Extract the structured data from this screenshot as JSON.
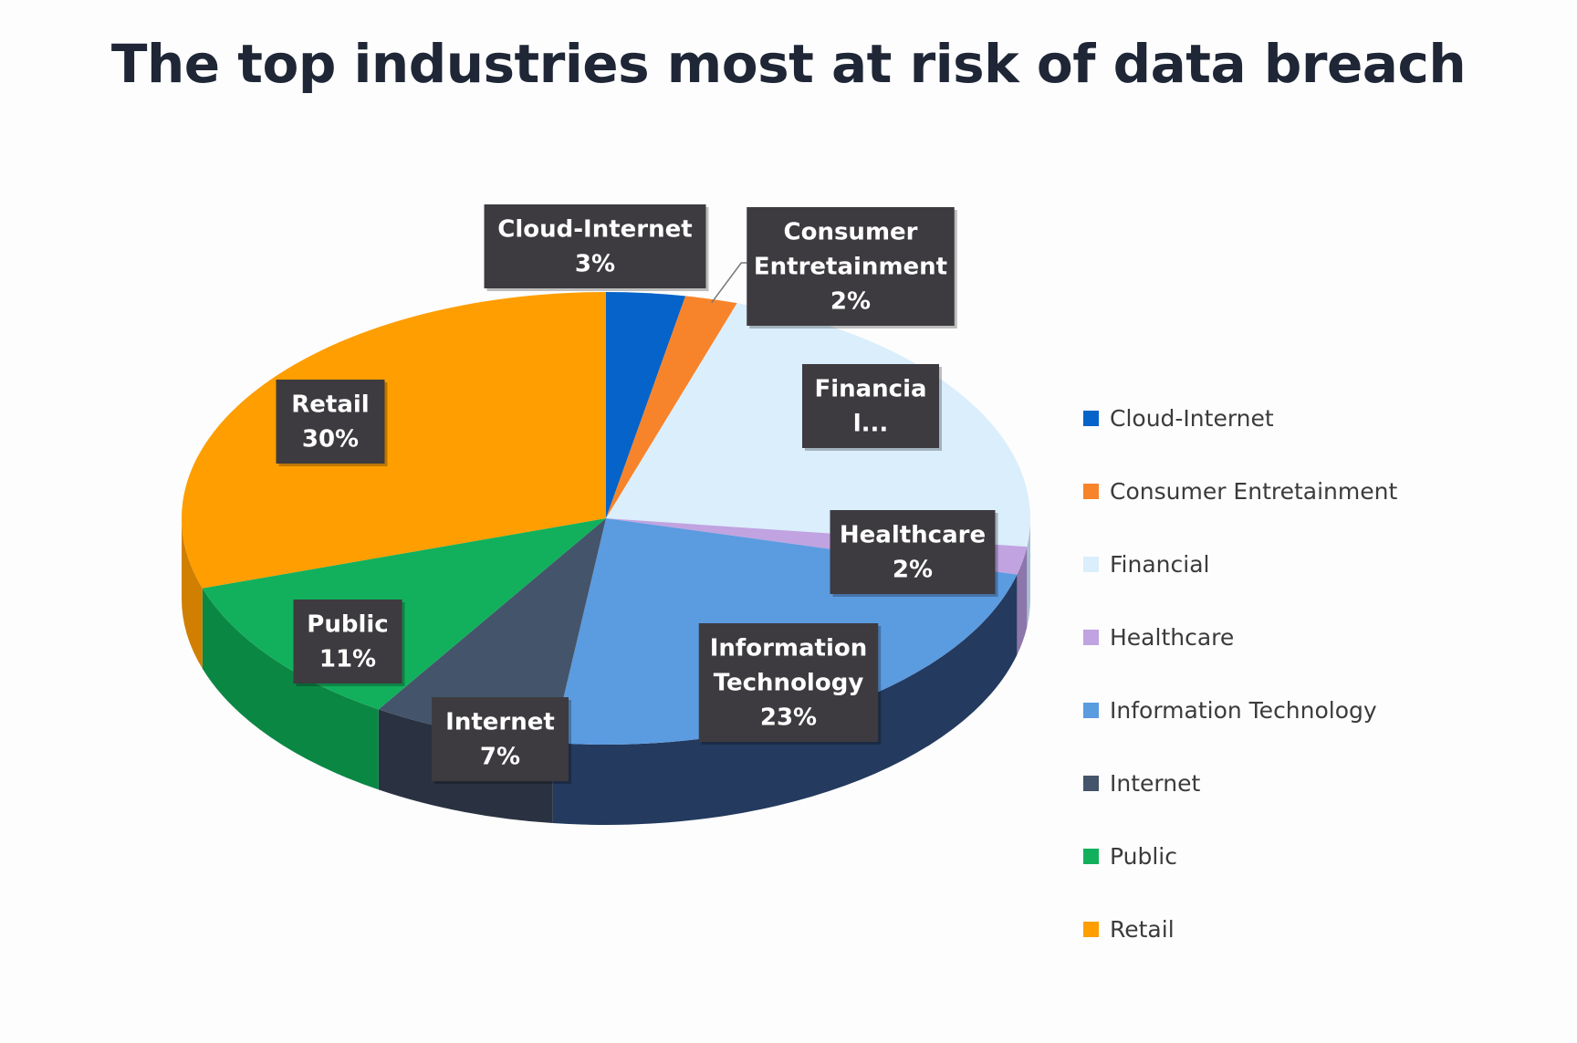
{
  "chart_data": {
    "type": "pie",
    "title": "The top industries most at risk of data breach",
    "slices": [
      {
        "name": "Cloud-Internet",
        "value": 3,
        "label": [
          "Cloud-Internet",
          "3%"
        ],
        "color": "#0563c9",
        "side": "#034690"
      },
      {
        "name": "Consumer Entretainment",
        "value": 2,
        "label": [
          "Consumer",
          "Entretainment",
          "2%"
        ],
        "color": "#f7842b",
        "side": "#c4621a"
      },
      {
        "name": "Financial",
        "value": 22,
        "label": [
          "Financia",
          "l..."
        ],
        "color": "#daeefc",
        "side": "#a9c0d2"
      },
      {
        "name": "Healthcare",
        "value": 2,
        "label": [
          "Healthcare",
          "2%"
        ],
        "color": "#c0a3e0",
        "side": "#8d76ab"
      },
      {
        "name": "Information Technology",
        "value": 23,
        "label": [
          "Information",
          "Technology",
          "23%"
        ],
        "color": "#5b9be0",
        "side": "#243a5e"
      },
      {
        "name": "Internet",
        "value": 7,
        "label": [
          "Internet",
          "7%"
        ],
        "color": "#44546a",
        "side": "#2a3242"
      },
      {
        "name": "Public",
        "value": 11,
        "label": [
          "Public",
          "11%"
        ],
        "color": "#12b05c",
        "side": "#0b8744"
      },
      {
        "name": "Retail",
        "value": 30,
        "label": [
          "Retail",
          "30%"
        ],
        "color": "#fe9e00",
        "side": "#d07f00"
      }
    ],
    "legend_position": "right"
  }
}
